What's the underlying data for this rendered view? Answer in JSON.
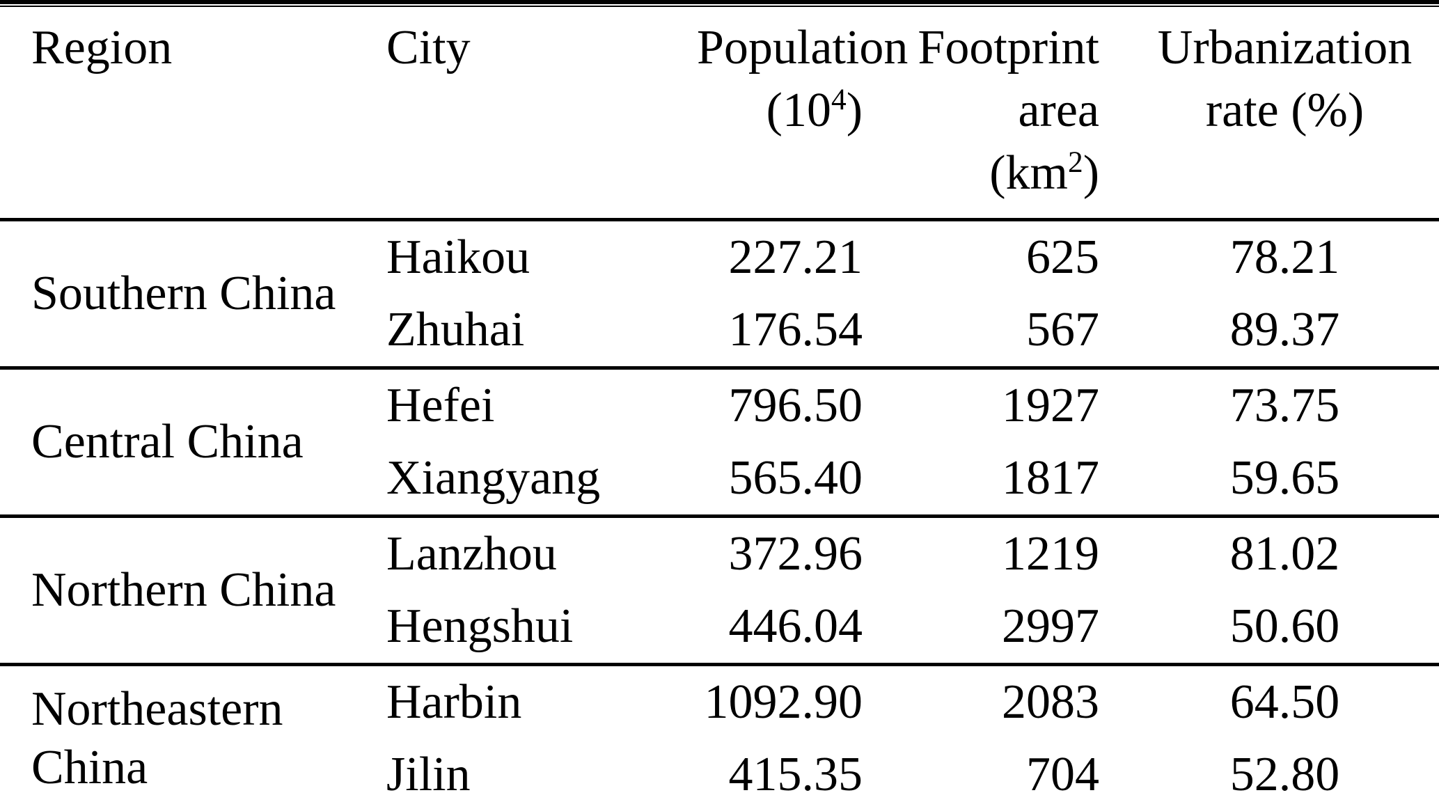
{
  "colors": {
    "text": "#000000",
    "background": "#ffffff",
    "rule": "#000000"
  },
  "table": {
    "headers": {
      "region": "Region",
      "city": "City",
      "population": {
        "line1": "Population",
        "unit_open": "(10",
        "unit_sup": "4",
        "unit_close": ")"
      },
      "footprint": {
        "line1": "Footprint",
        "line2": "area",
        "unit_open": "(km",
        "unit_sup": "2",
        "unit_close": ")"
      },
      "urbanization": {
        "line1": "Urbanization",
        "line2": "rate (%)"
      }
    },
    "groups": [
      {
        "region": "Southern China",
        "rows": [
          {
            "city": "Haikou",
            "population": "227.21",
            "footprint": "625",
            "urbanization": "78.21"
          },
          {
            "city": "Zhuhai",
            "population": "176.54",
            "footprint": "567",
            "urbanization": "89.37"
          }
        ]
      },
      {
        "region": "Central China",
        "rows": [
          {
            "city": "Hefei",
            "population": "796.50",
            "footprint": "1927",
            "urbanization": "73.75"
          },
          {
            "city": "Xiangyang",
            "population": "565.40",
            "footprint": "1817",
            "urbanization": "59.65"
          }
        ]
      },
      {
        "region": "Northern China",
        "rows": [
          {
            "city": "Lanzhou",
            "population": "372.96",
            "footprint": "1219",
            "urbanization": "81.02"
          },
          {
            "city": "Hengshui",
            "population": "446.04",
            "footprint": "2997",
            "urbanization": "50.60"
          }
        ]
      },
      {
        "region": "Northeastern China",
        "rows": [
          {
            "city": "Harbin",
            "population": "1092.90",
            "footprint": "2083",
            "urbanization": "64.50"
          },
          {
            "city": "Jilin",
            "population": "415.35",
            "footprint": "704",
            "urbanization": "52.80"
          }
        ]
      }
    ]
  },
  "chart_data": {
    "type": "table",
    "columns": [
      "Region",
      "City",
      "Population (10^4)",
      "Footprint area (km^2)",
      "Urbanization rate (%)"
    ],
    "rows": [
      [
        "Southern China",
        "Haikou",
        227.21,
        625,
        78.21
      ],
      [
        "Southern China",
        "Zhuhai",
        176.54,
        567,
        89.37
      ],
      [
        "Central China",
        "Hefei",
        796.5,
        1927,
        73.75
      ],
      [
        "Central China",
        "Xiangyang",
        565.4,
        1817,
        59.65
      ],
      [
        "Northern China",
        "Lanzhou",
        372.96,
        1219,
        81.02
      ],
      [
        "Northern China",
        "Hengshui",
        446.04,
        2997,
        50.6
      ],
      [
        "Northeastern China",
        "Harbin",
        1092.9,
        2083,
        64.5
      ],
      [
        "Northeastern China",
        "Jilin",
        415.35,
        704,
        52.8
      ]
    ]
  }
}
